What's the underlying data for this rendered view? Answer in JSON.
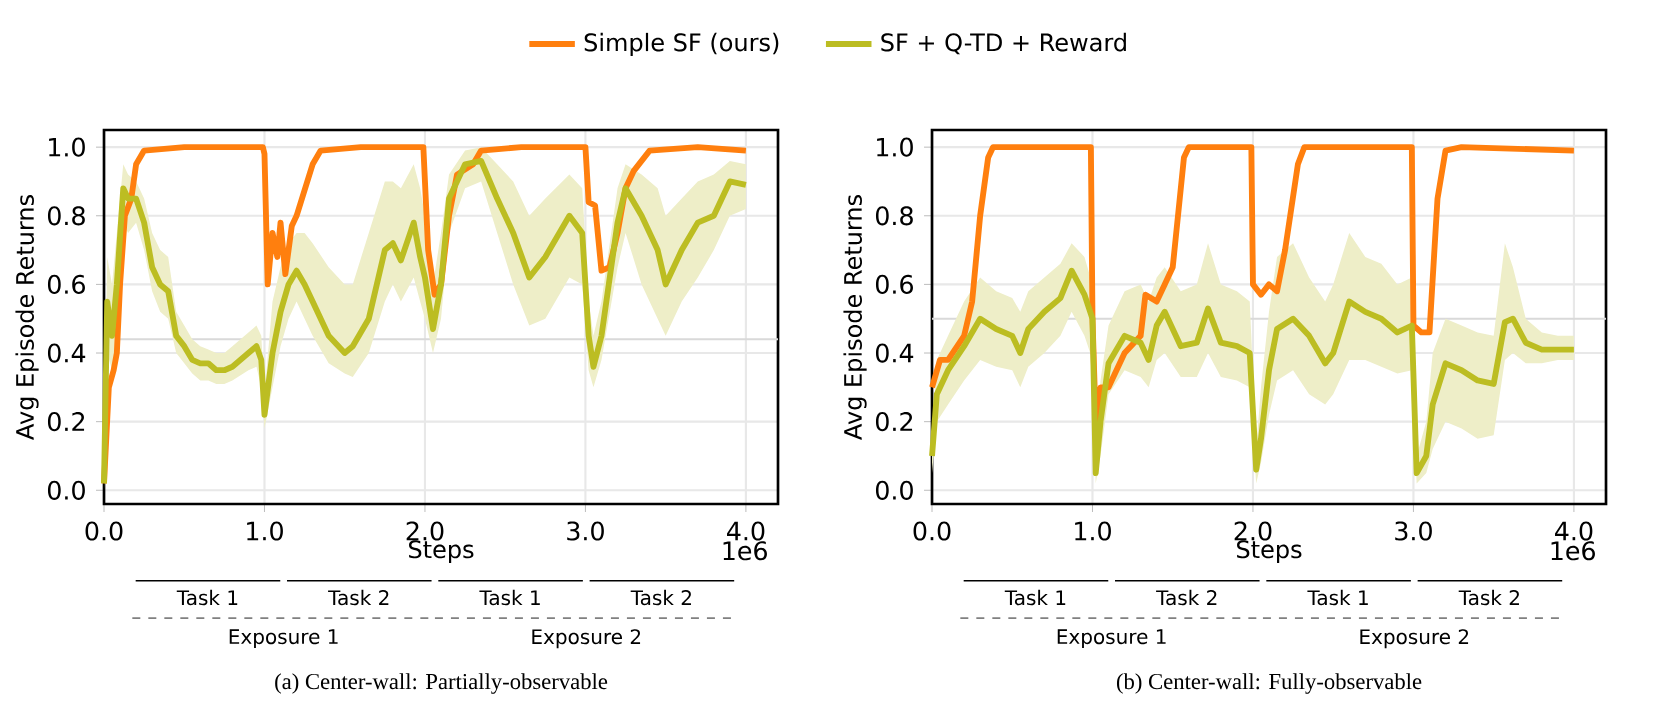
{
  "chart_data": [
    {
      "type": "line",
      "title": "(a) Center-wall: Partially-observable",
      "xlabel": "Steps",
      "ylabel": "Avg Episode Returns",
      "legend": "top",
      "grid": true,
      "xlim": [
        0,
        4.2
      ],
      "ylim": [
        -0.04,
        1.05
      ],
      "xticks": [
        {
          "value": 0,
          "label": "0.0"
        },
        {
          "value": 1,
          "label": "1.0"
        },
        {
          "value": 2,
          "label": "2.0"
        },
        {
          "value": 3,
          "label": "3.0"
        },
        {
          "value": 4,
          "label": "4.0"
        }
      ],
      "yticks": [
        {
          "value": 0,
          "label": "0.0"
        },
        {
          "value": 0.2,
          "label": "0.2"
        },
        {
          "value": 0.4,
          "label": "0.4"
        },
        {
          "value": 0.6,
          "label": "0.6"
        },
        {
          "value": 0.8,
          "label": "0.8"
        },
        {
          "value": 1,
          "label": "1.0"
        }
      ],
      "annotations": [
        "1e6",
        "Task 1",
        "Task 2",
        "Task 1",
        "Task 2",
        "Exposure 1",
        "Exposure 2"
      ],
      "ref_lines": [
        {
          "axis": "y",
          "value": 0.44,
          "color": "#d9d9d9"
        }
      ],
      "series": [
        {
          "name": "Simple SF (ours)",
          "color": "#ff7f0e",
          "x": [
            0,
            0.03,
            0.06,
            0.08,
            0.1,
            0.13,
            0.17,
            0.2,
            0.25,
            0.5,
            0.99,
            1.0,
            1.02,
            1.05,
            1.08,
            1.1,
            1.13,
            1.17,
            1.2,
            1.3,
            1.35,
            1.6,
            1.99,
            2.02,
            2.06,
            2.1,
            2.15,
            2.2,
            2.3,
            2.35,
            2.6,
            3.0,
            3.02,
            3.06,
            3.1,
            3.15,
            3.2,
            3.25,
            3.3,
            3.4,
            3.7,
            4.0
          ],
          "values": [
            0.02,
            0.3,
            0.35,
            0.4,
            0.6,
            0.8,
            0.85,
            0.95,
            0.99,
            1.0,
            1.0,
            0.98,
            0.6,
            0.75,
            0.68,
            0.78,
            0.63,
            0.77,
            0.8,
            0.95,
            0.99,
            1.0,
            1.0,
            0.7,
            0.57,
            0.6,
            0.8,
            0.92,
            0.95,
            0.99,
            1.0,
            1.0,
            0.84,
            0.83,
            0.64,
            0.65,
            0.75,
            0.88,
            0.93,
            0.99,
            1.0,
            0.99
          ]
        },
        {
          "name": "SF + Q-TD + Reward",
          "color": "#bcbd22",
          "x": [
            0,
            0.02,
            0.05,
            0.08,
            0.12,
            0.15,
            0.2,
            0.25,
            0.3,
            0.35,
            0.4,
            0.45,
            0.5,
            0.55,
            0.6,
            0.65,
            0.7,
            0.75,
            0.8,
            0.9,
            0.95,
            0.98,
            1.0,
            1.05,
            1.1,
            1.15,
            1.2,
            1.25,
            1.3,
            1.4,
            1.5,
            1.55,
            1.65,
            1.75,
            1.8,
            1.85,
            1.93,
            1.97,
            2.0,
            2.05,
            2.1,
            2.15,
            2.25,
            2.35,
            2.45,
            2.55,
            2.65,
            2.75,
            2.9,
            2.98,
            3.02,
            3.05,
            3.1,
            3.2,
            3.25,
            3.35,
            3.45,
            3.5,
            3.6,
            3.7,
            3.8,
            3.9,
            4.0
          ],
          "values": [
            0.02,
            0.55,
            0.45,
            0.6,
            0.88,
            0.85,
            0.85,
            0.78,
            0.65,
            0.6,
            0.58,
            0.45,
            0.42,
            0.38,
            0.37,
            0.37,
            0.35,
            0.35,
            0.36,
            0.4,
            0.42,
            0.38,
            0.22,
            0.4,
            0.52,
            0.6,
            0.64,
            0.6,
            0.55,
            0.45,
            0.4,
            0.42,
            0.5,
            0.7,
            0.72,
            0.67,
            0.78,
            0.68,
            0.62,
            0.47,
            0.6,
            0.85,
            0.95,
            0.96,
            0.85,
            0.75,
            0.62,
            0.68,
            0.8,
            0.75,
            0.45,
            0.36,
            0.45,
            0.78,
            0.88,
            0.8,
            0.7,
            0.6,
            0.7,
            0.78,
            0.8,
            0.9,
            0.89
          ],
          "lower": [
            0.0,
            0.4,
            0.35,
            0.45,
            0.78,
            0.75,
            0.78,
            0.7,
            0.58,
            0.52,
            0.5,
            0.4,
            0.37,
            0.34,
            0.32,
            0.32,
            0.31,
            0.31,
            0.32,
            0.35,
            0.36,
            0.3,
            0.18,
            0.3,
            0.42,
            0.5,
            0.55,
            0.5,
            0.45,
            0.37,
            0.34,
            0.33,
            0.4,
            0.55,
            0.6,
            0.55,
            0.62,
            0.55,
            0.5,
            0.4,
            0.5,
            0.75,
            0.88,
            0.9,
            0.75,
            0.6,
            0.48,
            0.5,
            0.62,
            0.6,
            0.35,
            0.3,
            0.38,
            0.65,
            0.75,
            0.6,
            0.5,
            0.45,
            0.55,
            0.62,
            0.7,
            0.8,
            0.82
          ],
          "upper": [
            0.1,
            0.68,
            0.6,
            0.75,
            0.95,
            0.92,
            0.9,
            0.85,
            0.75,
            0.7,
            0.68,
            0.52,
            0.48,
            0.44,
            0.42,
            0.41,
            0.4,
            0.4,
            0.42,
            0.46,
            0.48,
            0.45,
            0.28,
            0.55,
            0.65,
            0.72,
            0.75,
            0.75,
            0.72,
            0.65,
            0.6,
            0.6,
            0.75,
            0.9,
            0.9,
            0.88,
            0.95,
            0.88,
            0.8,
            0.6,
            0.75,
            0.92,
            0.99,
            1.0,
            0.95,
            0.9,
            0.8,
            0.85,
            0.92,
            0.88,
            0.55,
            0.45,
            0.55,
            0.88,
            0.95,
            0.92,
            0.88,
            0.8,
            0.85,
            0.9,
            0.92,
            0.96,
            0.95
          ]
        }
      ]
    },
    {
      "type": "line",
      "title": "(b) Center-wall: Fully-observable",
      "xlabel": "Steps",
      "ylabel": "Avg Episode Returns",
      "grid": true,
      "xlim": [
        0,
        4.2
      ],
      "ylim": [
        -0.04,
        1.05
      ],
      "xticks": [
        {
          "value": 0,
          "label": "0.0"
        },
        {
          "value": 1,
          "label": "1.0"
        },
        {
          "value": 2,
          "label": "2.0"
        },
        {
          "value": 3,
          "label": "3.0"
        },
        {
          "value": 4,
          "label": "4.0"
        }
      ],
      "yticks": [
        {
          "value": 0,
          "label": "0.0"
        },
        {
          "value": 0.2,
          "label": "0.2"
        },
        {
          "value": 0.4,
          "label": "0.4"
        },
        {
          "value": 0.6,
          "label": "0.6"
        },
        {
          "value": 0.8,
          "label": "0.8"
        },
        {
          "value": 1,
          "label": "1.0"
        }
      ],
      "annotations": [
        "1e6",
        "Task 1",
        "Task 2",
        "Task 1",
        "Task 2",
        "Exposure 1",
        "Exposure 2"
      ],
      "ref_lines": [
        {
          "axis": "y",
          "value": 0.5,
          "color": "#d9d9d9"
        }
      ],
      "series": [
        {
          "color": "#ff7f0e",
          "x": [
            0,
            0.05,
            0.1,
            0.2,
            0.25,
            0.3,
            0.35,
            0.38,
            0.99,
            1.0,
            1.02,
            1.05,
            1.1,
            1.2,
            1.3,
            1.33,
            1.4,
            1.45,
            1.5,
            1.57,
            1.6,
            1.99,
            2.0,
            2.05,
            2.1,
            2.15,
            2.2,
            2.28,
            2.32,
            2.99,
            3.0,
            3.05,
            3.1,
            3.15,
            3.2,
            3.3,
            4.0
          ],
          "values": [
            0.3,
            0.38,
            0.38,
            0.45,
            0.55,
            0.8,
            0.97,
            1.0,
            1.0,
            0.5,
            0.2,
            0.3,
            0.3,
            0.4,
            0.45,
            0.57,
            0.55,
            0.6,
            0.65,
            0.97,
            1.0,
            1.0,
            0.6,
            0.57,
            0.6,
            0.58,
            0.7,
            0.95,
            1.0,
            1.0,
            0.48,
            0.46,
            0.46,
            0.85,
            0.99,
            1.0,
            0.99
          ]
        },
        {
          "color": "#bcbd22",
          "x": [
            0,
            0.03,
            0.1,
            0.2,
            0.3,
            0.4,
            0.5,
            0.55,
            0.6,
            0.7,
            0.8,
            0.87,
            0.95,
            1.0,
            1.02,
            1.05,
            1.1,
            1.2,
            1.3,
            1.35,
            1.4,
            1.45,
            1.55,
            1.65,
            1.72,
            1.8,
            1.9,
            1.98,
            2.02,
            2.05,
            2.1,
            2.15,
            2.25,
            2.35,
            2.45,
            2.5,
            2.6,
            2.7,
            2.8,
            2.9,
            2.99,
            3.02,
            3.08,
            3.12,
            3.2,
            3.3,
            3.4,
            3.5,
            3.57,
            3.62,
            3.7,
            3.8,
            3.9,
            4.0
          ],
          "values": [
            0.1,
            0.28,
            0.35,
            0.42,
            0.5,
            0.47,
            0.45,
            0.4,
            0.47,
            0.52,
            0.56,
            0.64,
            0.57,
            0.5,
            0.05,
            0.2,
            0.37,
            0.45,
            0.43,
            0.38,
            0.48,
            0.52,
            0.42,
            0.43,
            0.53,
            0.43,
            0.42,
            0.4,
            0.06,
            0.15,
            0.35,
            0.47,
            0.5,
            0.45,
            0.37,
            0.4,
            0.55,
            0.52,
            0.5,
            0.46,
            0.48,
            0.05,
            0.1,
            0.25,
            0.37,
            0.35,
            0.32,
            0.31,
            0.49,
            0.5,
            0.43,
            0.41,
            0.41,
            0.41
          ],
          "lower": [
            0.05,
            0.2,
            0.25,
            0.32,
            0.38,
            0.36,
            0.35,
            0.3,
            0.36,
            0.4,
            0.45,
            0.52,
            0.45,
            0.38,
            0.02,
            0.1,
            0.28,
            0.35,
            0.33,
            0.3,
            0.38,
            0.4,
            0.33,
            0.33,
            0.4,
            0.33,
            0.32,
            0.3,
            0.02,
            0.08,
            0.22,
            0.32,
            0.35,
            0.28,
            0.25,
            0.28,
            0.38,
            0.38,
            0.36,
            0.34,
            0.35,
            0.02,
            0.05,
            0.12,
            0.2,
            0.18,
            0.15,
            0.16,
            0.38,
            0.4,
            0.37,
            0.37,
            0.38,
            0.38
          ],
          "upper": [
            0.15,
            0.38,
            0.45,
            0.55,
            0.62,
            0.58,
            0.56,
            0.52,
            0.58,
            0.62,
            0.66,
            0.72,
            0.68,
            0.6,
            0.1,
            0.32,
            0.48,
            0.58,
            0.6,
            0.55,
            0.62,
            0.65,
            0.58,
            0.6,
            0.72,
            0.6,
            0.58,
            0.55,
            0.12,
            0.3,
            0.52,
            0.68,
            0.72,
            0.62,
            0.55,
            0.6,
            0.75,
            0.68,
            0.66,
            0.6,
            0.62,
            0.1,
            0.2,
            0.4,
            0.5,
            0.48,
            0.46,
            0.45,
            0.72,
            0.65,
            0.5,
            0.46,
            0.45,
            0.45
          ]
        }
      ]
    }
  ]
}
